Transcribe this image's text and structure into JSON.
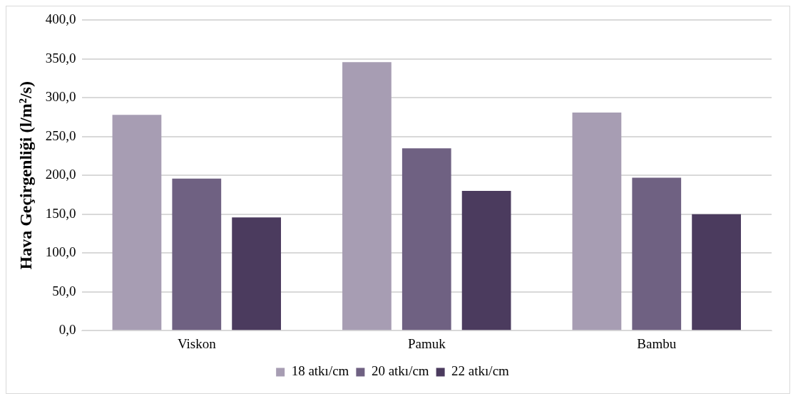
{
  "chart_data": {
    "type": "bar",
    "ylabel": "Hava Geçirgenliği (l/m²/s)",
    "categories": [
      "Viskon",
      "Pamuk",
      "Bambu"
    ],
    "series": [
      {
        "name": "18 atkı/cm",
        "color": "#a79db3",
        "values": [
          278,
          346,
          281
        ]
      },
      {
        "name": "20 atkı/cm",
        "color": "#6f6182",
        "values": [
          196,
          235,
          197
        ]
      },
      {
        "name": "22 atkı/cm",
        "color": "#4b3b5e",
        "values": [
          146,
          180,
          150
        ]
      }
    ],
    "ylim": [
      0,
      400
    ],
    "yticks": [
      {
        "value": 0,
        "label": "0,0"
      },
      {
        "value": 50,
        "label": "50,0"
      },
      {
        "value": 100,
        "label": "100,0"
      },
      {
        "value": 150,
        "label": "150,0"
      },
      {
        "value": 200,
        "label": "200,0"
      },
      {
        "value": 250,
        "label": "250,0"
      },
      {
        "value": 300,
        "label": "300,0"
      },
      {
        "value": 350,
        "label": "350,0"
      },
      {
        "value": 400,
        "label": "400,0"
      }
    ],
    "grid": "y",
    "legend": "bottom"
  }
}
